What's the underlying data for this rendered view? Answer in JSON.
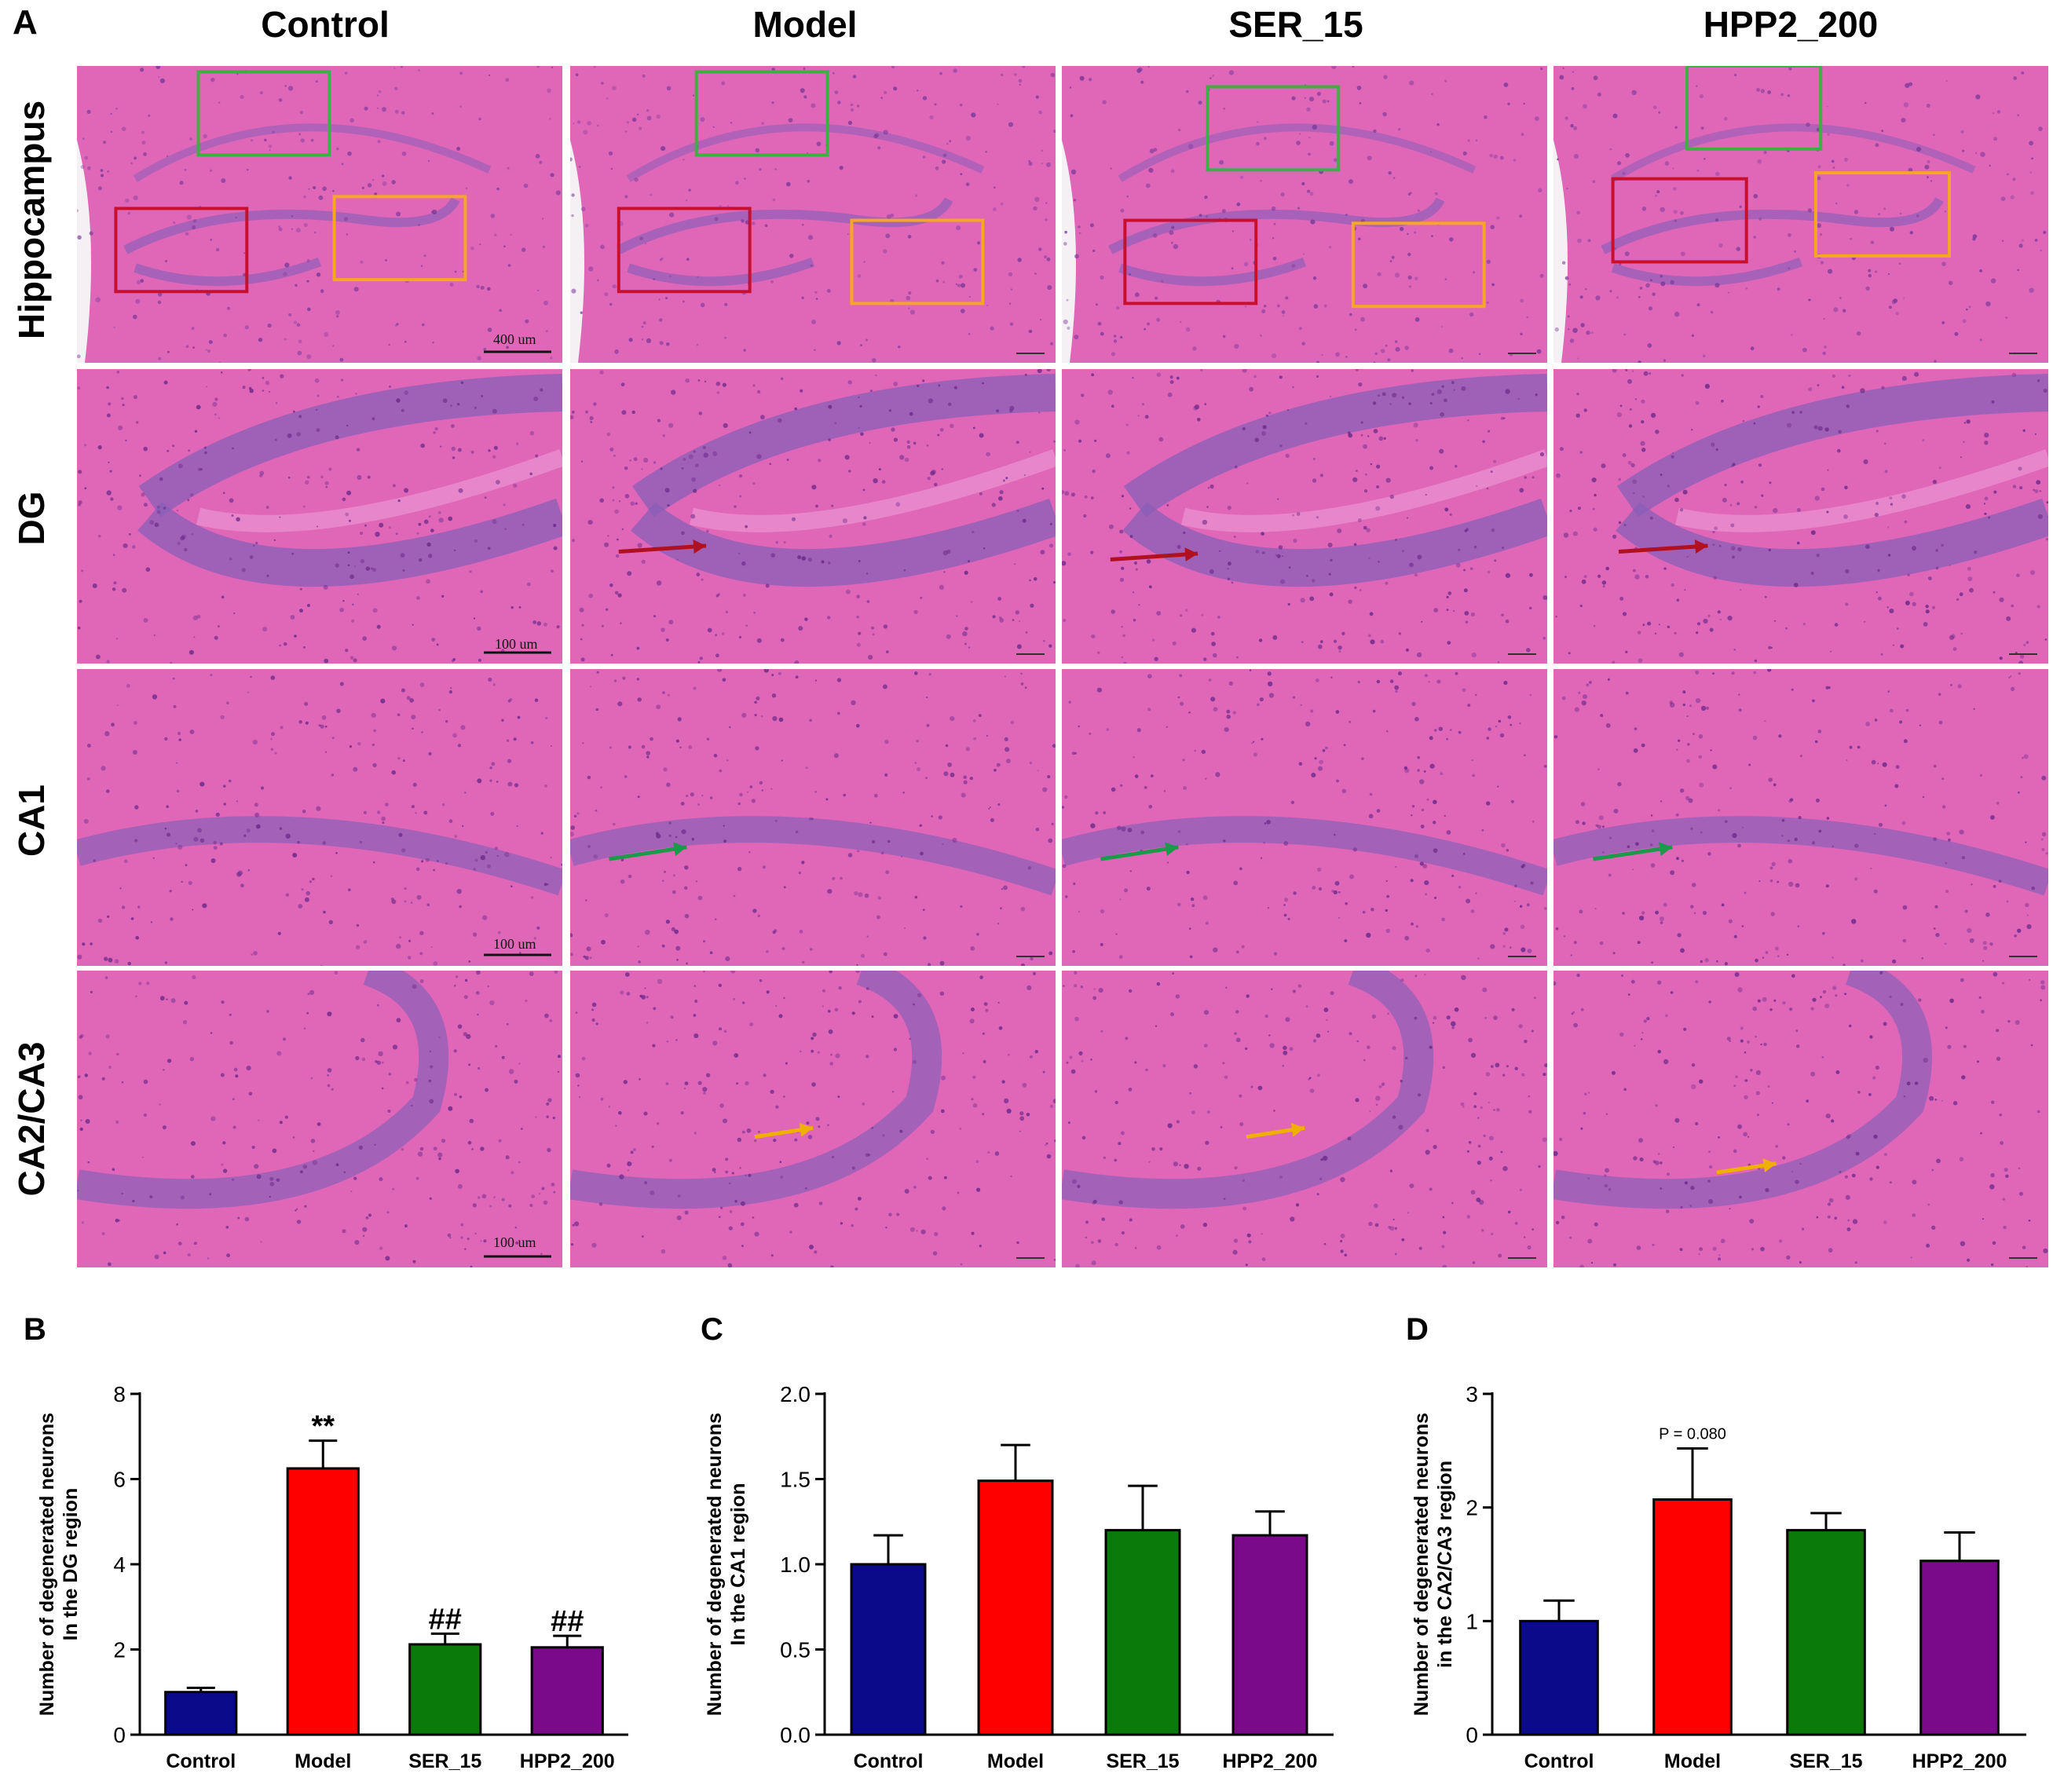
{
  "figure": {
    "panel_a_letter": "A",
    "columns": [
      "Control",
      "Model",
      "SER_15",
      "HPP2_200"
    ],
    "rows": [
      "Hippocampus",
      "DG",
      "CA1",
      "CA2/CA3"
    ],
    "scale_bars": [
      "400 um",
      "100 um",
      "100 um",
      "100 um"
    ],
    "colors": {
      "tissue": "#e066b8",
      "tissue_light": "#ea8fd0",
      "cell_layer": "#8a5fb8",
      "box_green": "#3cb043",
      "box_red": "#c8102e",
      "box_orange": "#f5a623",
      "arrow_red": "#b01020",
      "arrow_green": "#1a9a4a",
      "arrow_yellow": "#f0b000"
    }
  },
  "chart_data": [
    {
      "panel": "B",
      "type": "bar",
      "categories": [
        "Control",
        "Model",
        "SER_15",
        "HPP2_200"
      ],
      "values": [
        1.0,
        6.25,
        2.12,
        2.05
      ],
      "errors": [
        0.1,
        0.65,
        0.25,
        0.27
      ],
      "colors": [
        "#0a0a8a",
        "#ff0000",
        "#0a7a0a",
        "#7a0a8a"
      ],
      "annotations": [
        "",
        "**",
        "##",
        "##"
      ],
      "title": "",
      "xlabel": "",
      "ylabel": "Number of degenerated neurons\nIn the DG region",
      "ylim": [
        0,
        8
      ],
      "yticks": [
        "0",
        "2",
        "4",
        "6",
        "8"
      ],
      "ytick_values": [
        0,
        2,
        4,
        6,
        8
      ]
    },
    {
      "panel": "C",
      "type": "bar",
      "categories": [
        "Control",
        "Model",
        "SER_15",
        "HPP2_200"
      ],
      "values": [
        1.0,
        1.49,
        1.2,
        1.17
      ],
      "errors": [
        0.17,
        0.21,
        0.26,
        0.14
      ],
      "colors": [
        "#0a0a8a",
        "#ff0000",
        "#0a7a0a",
        "#7a0a8a"
      ],
      "annotations": [
        "",
        "",
        "",
        ""
      ],
      "title": "",
      "xlabel": "",
      "ylabel": "Number of degenerated neurons\nIn the CA1 region",
      "ylim": [
        0,
        2
      ],
      "yticks": [
        "0.0",
        "0.5",
        "1.0",
        "1.5",
        "2.0"
      ],
      "ytick_values": [
        0,
        0.5,
        1.0,
        1.5,
        2.0
      ]
    },
    {
      "panel": "D",
      "type": "bar",
      "categories": [
        "Control",
        "Model",
        "SER_15",
        "HPP2_200"
      ],
      "values": [
        1.0,
        2.07,
        1.8,
        1.53
      ],
      "errors": [
        0.18,
        0.45,
        0.15,
        0.25
      ],
      "colors": [
        "#0a0a8a",
        "#ff0000",
        "#0a7a0a",
        "#7a0a8a"
      ],
      "annotations": [
        "",
        "P = 0.080",
        "",
        ""
      ],
      "title": "",
      "xlabel": "",
      "ylabel": "Number of degenerated neurons\nin the CA2/CA3 region",
      "ylim": [
        0,
        3
      ],
      "yticks": [
        "0",
        "1",
        "2",
        "3"
      ],
      "ytick_values": [
        0,
        1,
        2,
        3
      ]
    }
  ]
}
